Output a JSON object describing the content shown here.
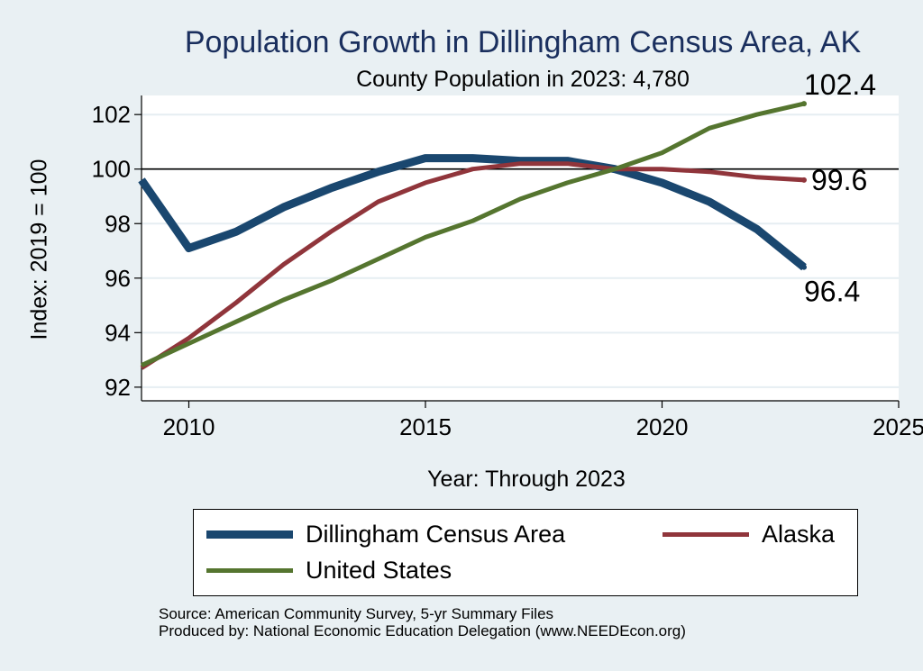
{
  "chart_data": {
    "type": "line",
    "title": "Population Growth in Dillingham Census Area, AK",
    "subtitle": "County Population in 2023: 4,780",
    "xlabel": "Year: Through 2023",
    "ylabel": "Index: 2019 = 100",
    "xlim": [
      2009,
      2025
    ],
    "ylim": [
      91.5,
      102.7
    ],
    "xticks": [
      2010,
      2015,
      2020,
      2025
    ],
    "yticks": [
      92,
      94,
      96,
      98,
      100,
      102
    ],
    "reference_line": 100,
    "x": [
      2009,
      2010,
      2011,
      2012,
      2013,
      2014,
      2015,
      2016,
      2017,
      2018,
      2019,
      2020,
      2021,
      2022,
      2023
    ],
    "series": [
      {
        "name": "Dillingham Census Area",
        "color": "#1a476f",
        "width": 9,
        "values": [
          99.6,
          97.1,
          97.7,
          98.6,
          99.3,
          99.9,
          100.4,
          100.4,
          100.3,
          100.3,
          100.0,
          99.5,
          98.8,
          97.8,
          96.4
        ],
        "end_label": "96.4"
      },
      {
        "name": "Alaska",
        "color": "#90353b",
        "width": 5,
        "values": [
          92.7,
          93.8,
          95.1,
          96.5,
          97.7,
          98.8,
          99.5,
          100.0,
          100.2,
          100.2,
          100.0,
          100.0,
          99.9,
          99.7,
          99.6
        ],
        "end_label": "99.6"
      },
      {
        "name": "United States",
        "color": "#55752f",
        "width": 5,
        "values": [
          92.8,
          93.6,
          94.4,
          95.2,
          95.9,
          96.7,
          97.5,
          98.1,
          98.9,
          99.5,
          100.0,
          100.6,
          101.5,
          102.0,
          102.4
        ],
        "end_label": "102.4"
      }
    ],
    "legend": [
      {
        "label": "Dillingham Census Area",
        "color": "#1a476f"
      },
      {
        "label": "Alaska",
        "color": "#90353b"
      },
      {
        "label": "United States",
        "color": "#55752f"
      }
    ]
  },
  "source": {
    "line1": "Source: American Community Survey, 5-yr Summary Files",
    "line2": "Produced by: National Economic Education Delegation (www.NEEDEcon.org)"
  }
}
